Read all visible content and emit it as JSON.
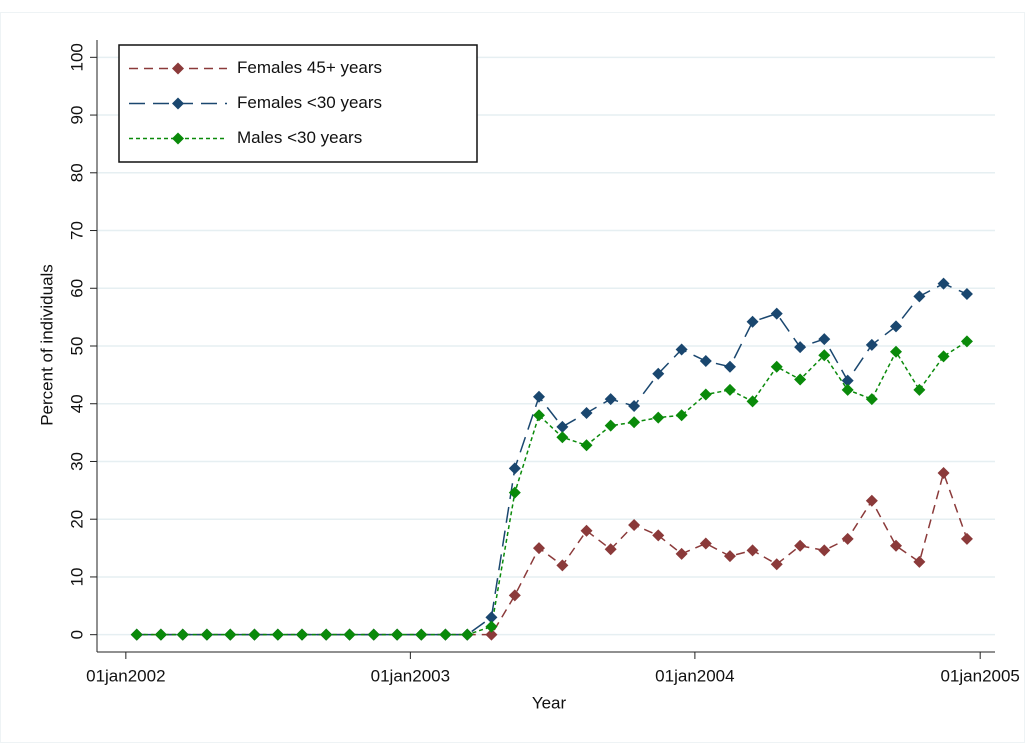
{
  "chart_data": {
    "type": "line",
    "x_label": "Year",
    "y_label": "Percent of individuals",
    "x": [
      "2002-01-15",
      "2002-02-15",
      "2002-03-15",
      "2002-04-15",
      "2002-05-15",
      "2002-06-15",
      "2002-07-15",
      "2002-08-15",
      "2002-09-15",
      "2002-10-15",
      "2002-11-15",
      "2002-12-15",
      "2003-01-15",
      "2003-02-15",
      "2003-03-15",
      "2003-04-15",
      "2003-05-15",
      "2003-06-15",
      "2003-07-15",
      "2003-08-15",
      "2003-09-15",
      "2003-10-15",
      "2003-11-15",
      "2003-12-15",
      "2004-01-15",
      "2004-02-15",
      "2004-03-15",
      "2004-04-15",
      "2004-05-15",
      "2004-06-15",
      "2004-07-15",
      "2004-08-15",
      "2004-09-15",
      "2004-10-15",
      "2004-11-15",
      "2004-12-15"
    ],
    "series": [
      {
        "name": "Females 45+ years",
        "color": "#8b3a3a",
        "line_style": "dash",
        "values": [
          0,
          0,
          0,
          0,
          0,
          0,
          0,
          0,
          0,
          0,
          0,
          0,
          0,
          0,
          0,
          0,
          6.8,
          15,
          12,
          18,
          14.8,
          19,
          17.2,
          14,
          15.8,
          13.6,
          14.6,
          12.2,
          15.4,
          14.6,
          16.6,
          23.2,
          15.4,
          12.6,
          28,
          16.6
        ]
      },
      {
        "name": "Females <30 years",
        "color": "#1a476f",
        "line_style": "longdash",
        "values": [
          0,
          0,
          0,
          0,
          0,
          0,
          0,
          0,
          0,
          0,
          0,
          0,
          0,
          0,
          0,
          3,
          28.8,
          41.2,
          36,
          38.4,
          40.8,
          39.6,
          45.2,
          49.4,
          47.4,
          46.4,
          54.2,
          55.6,
          49.8,
          51.2,
          44,
          50.2,
          53.4,
          58.6,
          60.8,
          59
        ]
      },
      {
        "name": "Males <30 years",
        "color": "#0a8a0a",
        "line_style": "shortdash",
        "values": [
          0,
          0,
          0,
          0,
          0,
          0,
          0,
          0,
          0,
          0,
          0,
          0,
          0,
          0,
          0,
          1.4,
          24.6,
          38,
          34.2,
          32.8,
          36.2,
          36.8,
          37.6,
          38,
          41.6,
          42.4,
          40.4,
          46.4,
          44.2,
          48.4,
          42.4,
          40.8,
          49,
          42.4,
          48.2,
          50.8
        ]
      }
    ],
    "xlim": [
      "2001-11-25",
      "2005-01-20"
    ],
    "xticks": [
      {
        "value": "2002-01-01",
        "label": "01jan2002"
      },
      {
        "value": "2003-01-01",
        "label": "01jan2003"
      },
      {
        "value": "2004-01-01",
        "label": "01jan2004"
      },
      {
        "value": "2005-01-01",
        "label": "01jan2005"
      }
    ],
    "ylim": [
      -3,
      103
    ],
    "yticks": [
      0,
      10,
      20,
      30,
      40,
      50,
      60,
      70,
      80,
      90,
      100
    ],
    "grid": true,
    "legend": "top-left"
  }
}
